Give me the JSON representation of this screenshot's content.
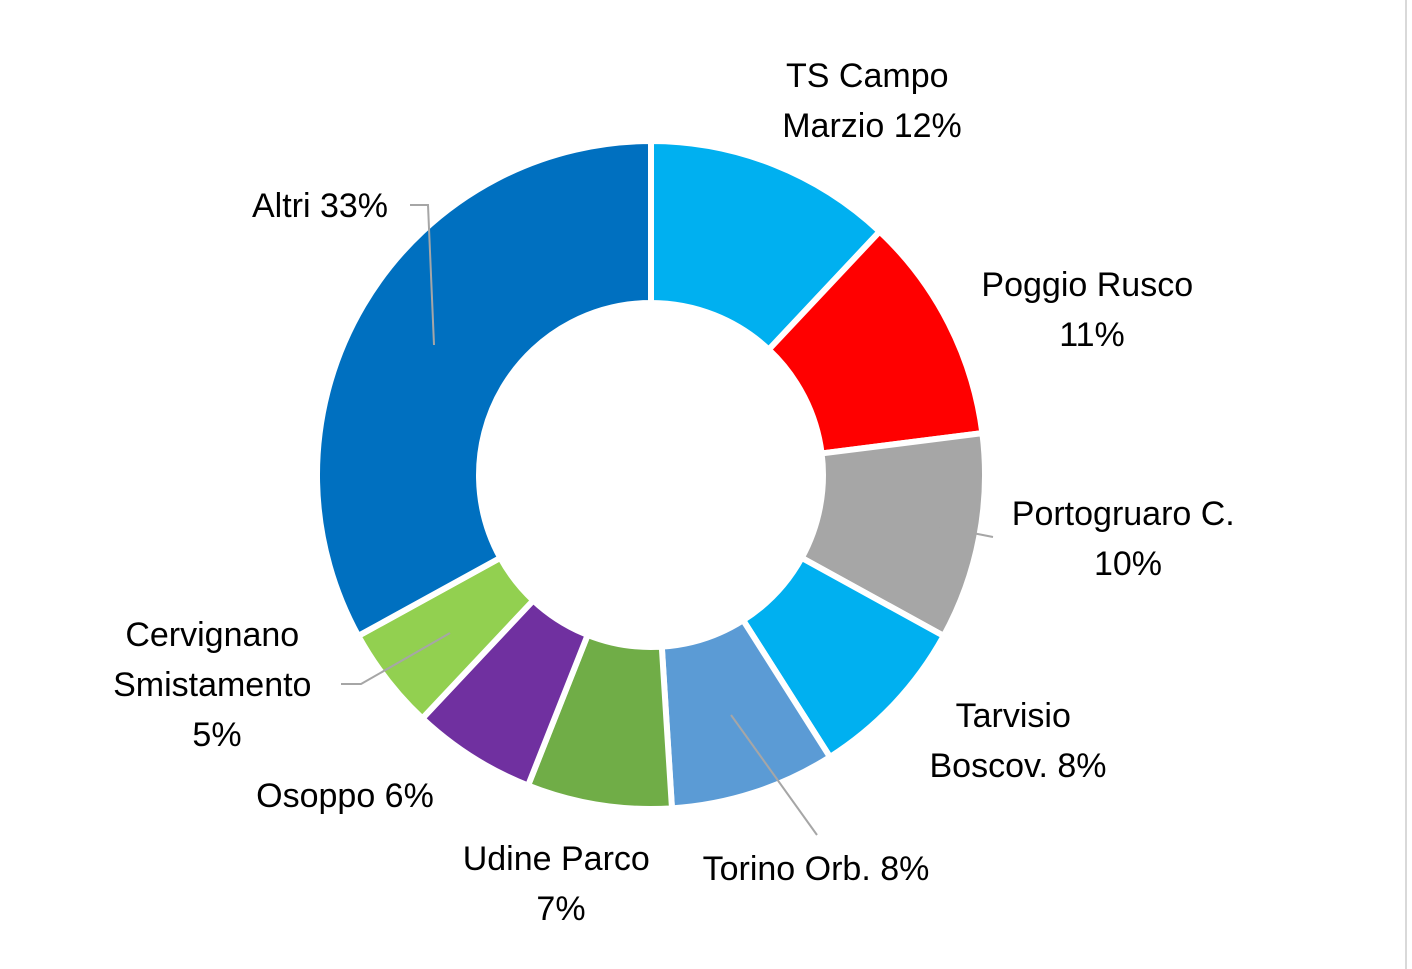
{
  "chart_data": {
    "type": "pie",
    "variant": "donut",
    "title": "",
    "series": [
      {
        "categories": [
          "TS Campo Marzio",
          "Poggio Rusco",
          "Portogruaro C.",
          "Tarvisio Boscov.",
          "Torino Orb.",
          "Udine Parco",
          "Osoppo",
          "Cervignano Smistamento",
          "Altri"
        ],
        "values": [
          12,
          11,
          10,
          8,
          8,
          7,
          6,
          5,
          33
        ],
        "colors": [
          "#00b0f0",
          "#ff0000",
          "#a6a6a6",
          "#00b0f0",
          "#5b9bd5",
          "#70ad47",
          "#7030a0",
          "#92d050",
          "#0070c0"
        ]
      }
    ],
    "data_labels": [
      {
        "lines": [
          "TS Campo",
          "Marzio  12%"
        ]
      },
      {
        "lines": [
          "Poggio Rusco",
          "11%"
        ]
      },
      {
        "lines": [
          "Portogruaro C.",
          "10%"
        ]
      },
      {
        "lines": [
          "Tarvisio",
          "Boscov. 8%"
        ]
      },
      {
        "lines": [
          "Torino Orb. 8%"
        ]
      },
      {
        "lines": [
          "Udine Parco",
          "7%"
        ]
      },
      {
        "lines": [
          "Osoppo 6%"
        ]
      },
      {
        "lines": [
          "Cervignano",
          "Smistamento",
          "5%"
        ]
      },
      {
        "lines": [
          "Altri 33%"
        ]
      }
    ],
    "legend": "none",
    "grid": false
  }
}
